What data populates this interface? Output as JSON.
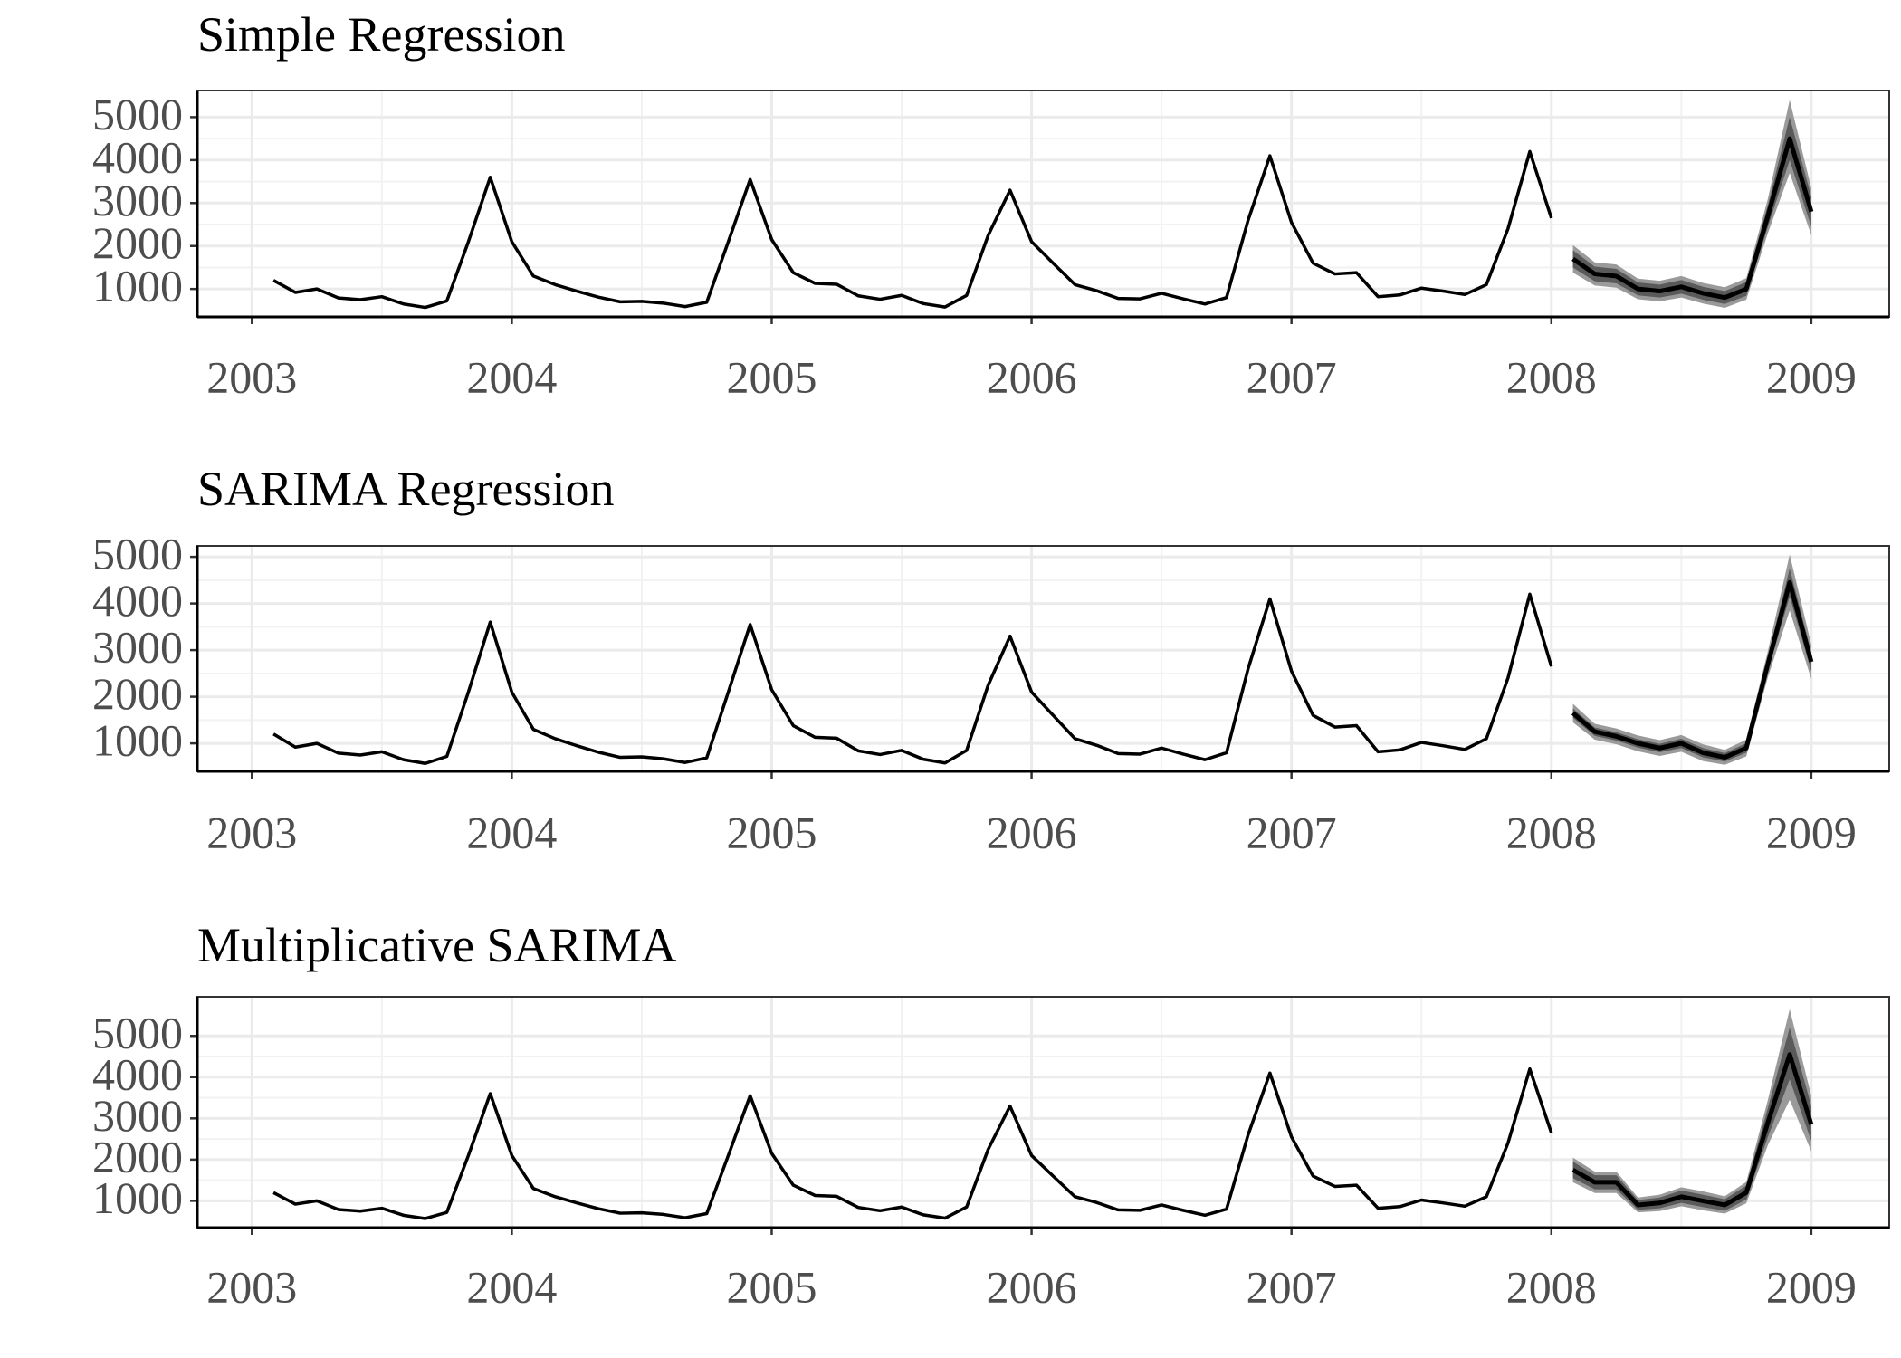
{
  "chart_data": [
    {
      "type": "line",
      "title": "Simple Regression",
      "color": "#000000",
      "grid": true,
      "xlim": [
        2002.79,
        2009.3
      ],
      "xticks": [
        2003,
        2004,
        2005,
        2006,
        2007,
        2008,
        2009
      ],
      "ylim": [
        350,
        5620
      ],
      "yticks": [
        1000,
        2000,
        3000,
        4000,
        5000
      ],
      "x": [
        2003.083,
        2003.167,
        2003.25,
        2003.333,
        2003.417,
        2003.5,
        2003.583,
        2003.667,
        2003.75,
        2003.833,
        2003.917,
        2004,
        2004.083,
        2004.167,
        2004.25,
        2004.333,
        2004.417,
        2004.5,
        2004.583,
        2004.667,
        2004.75,
        2004.833,
        2004.917,
        2005,
        2005.083,
        2005.167,
        2005.25,
        2005.333,
        2005.417,
        2005.5,
        2005.583,
        2005.667,
        2005.75,
        2005.833,
        2005.917,
        2006,
        2006.083,
        2006.167,
        2006.25,
        2006.333,
        2006.417,
        2006.5,
        2006.583,
        2006.667,
        2006.75,
        2006.833,
        2006.917,
        2007,
        2007.083,
        2007.167,
        2007.25,
        2007.333,
        2007.417,
        2007.5,
        2007.583,
        2007.667,
        2007.75,
        2007.833,
        2007.917,
        2008
      ],
      "values": [
        1200,
        920,
        1000,
        790,
        750,
        820,
        650,
        570,
        720,
        2100,
        3600,
        2100,
        1300,
        1100,
        950,
        810,
        700,
        710,
        670,
        590,
        690,
        2100,
        3550,
        2150,
        1380,
        1130,
        1110,
        840,
        760,
        850,
        660,
        580,
        850,
        2250,
        3300,
        2100,
        1600,
        1100,
        960,
        780,
        770,
        900,
        770,
        650,
        800,
        2600,
        4100,
        2550,
        1600,
        1350,
        1380,
        820,
        860,
        1020,
        950,
        870,
        1100,
        2400,
        4200,
        2650
      ],
      "forecast": {
        "color_80": "#5a5a5a",
        "color_95": "#9a9a9a",
        "x": [
          2008.083,
          2008.167,
          2008.25,
          2008.333,
          2008.417,
          2008.5,
          2008.583,
          2008.667,
          2008.75,
          2008.833,
          2008.917,
          2009
        ],
        "values": [
          1700,
          1350,
          1300,
          1000,
          950,
          1050,
          900,
          800,
          1000,
          2700,
          4500,
          2800
        ],
        "lower_80": [
          1500,
          1180,
          1130,
          850,
          800,
          890,
          750,
          650,
          840,
          2450,
          4000,
          2450
        ],
        "upper_80": [
          1900,
          1520,
          1470,
          1150,
          1100,
          1210,
          1050,
          950,
          1160,
          2950,
          5000,
          3150
        ],
        "lower_95": [
          1380,
          1080,
          1030,
          760,
          710,
          800,
          660,
          560,
          750,
          2300,
          3700,
          2250
        ],
        "upper_95": [
          2020,
          1620,
          1570,
          1240,
          1190,
          1300,
          1140,
          1040,
          1250,
          3100,
          5400,
          3350
        ]
      }
    },
    {
      "type": "line",
      "title": "SARIMA Regression",
      "color": "#000000",
      "grid": true,
      "xlim": [
        2002.79,
        2009.3
      ],
      "xticks": [
        2003,
        2004,
        2005,
        2006,
        2007,
        2008,
        2009
      ],
      "ylim": [
        400,
        5235
      ],
      "yticks": [
        1000,
        2000,
        3000,
        4000,
        5000
      ],
      "x": [
        2003.083,
        2003.167,
        2003.25,
        2003.333,
        2003.417,
        2003.5,
        2003.583,
        2003.667,
        2003.75,
        2003.833,
        2003.917,
        2004,
        2004.083,
        2004.167,
        2004.25,
        2004.333,
        2004.417,
        2004.5,
        2004.583,
        2004.667,
        2004.75,
        2004.833,
        2004.917,
        2005,
        2005.083,
        2005.167,
        2005.25,
        2005.333,
        2005.417,
        2005.5,
        2005.583,
        2005.667,
        2005.75,
        2005.833,
        2005.917,
        2006,
        2006.083,
        2006.167,
        2006.25,
        2006.333,
        2006.417,
        2006.5,
        2006.583,
        2006.667,
        2006.75,
        2006.833,
        2006.917,
        2007,
        2007.083,
        2007.167,
        2007.25,
        2007.333,
        2007.417,
        2007.5,
        2007.583,
        2007.667,
        2007.75,
        2007.833,
        2007.917,
        2008
      ],
      "values": [
        1200,
        920,
        1000,
        790,
        750,
        820,
        650,
        570,
        720,
        2100,
        3600,
        2100,
        1300,
        1100,
        950,
        810,
        700,
        710,
        670,
        590,
        690,
        2100,
        3550,
        2150,
        1380,
        1130,
        1110,
        840,
        760,
        850,
        660,
        580,
        850,
        2250,
        3300,
        2100,
        1600,
        1100,
        960,
        780,
        770,
        900,
        770,
        650,
        800,
        2600,
        4100,
        2550,
        1600,
        1350,
        1380,
        820,
        860,
        1020,
        950,
        870,
        1100,
        2400,
        4200,
        2650
      ],
      "forecast": {
        "color_80": "#5a5a5a",
        "color_95": "#9a9a9a",
        "x": [
          2008.083,
          2008.167,
          2008.25,
          2008.333,
          2008.417,
          2008.5,
          2008.583,
          2008.667,
          2008.75,
          2008.833,
          2008.917,
          2009
        ],
        "values": [
          1650,
          1250,
          1150,
          1000,
          900,
          1000,
          800,
          700,
          900,
          2700,
          4450,
          2750
        ],
        "lower_80": [
          1550,
          1160,
          1060,
          910,
          810,
          900,
          700,
          610,
          800,
          2550,
          4150,
          2550
        ],
        "upper_80": [
          1750,
          1340,
          1240,
          1090,
          990,
          1100,
          900,
          790,
          1000,
          2850,
          4750,
          2950
        ],
        "lower_95": [
          1450,
          1080,
          980,
          830,
          730,
          820,
          620,
          540,
          720,
          2420,
          3850,
          2380
        ],
        "upper_95": [
          1850,
          1420,
          1320,
          1170,
          1070,
          1180,
          980,
          860,
          1080,
          2980,
          5050,
          3120
        ]
      }
    },
    {
      "type": "line",
      "title": "Multiplicative SARIMA",
      "color": "#000000",
      "grid": true,
      "xlim": [
        2002.79,
        2009.3
      ],
      "xticks": [
        2003,
        2004,
        2005,
        2006,
        2007,
        2008,
        2009
      ],
      "ylim": [
        350,
        5950
      ],
      "yticks": [
        1000,
        2000,
        3000,
        4000,
        5000
      ],
      "x": [
        2003.083,
        2003.167,
        2003.25,
        2003.333,
        2003.417,
        2003.5,
        2003.583,
        2003.667,
        2003.75,
        2003.833,
        2003.917,
        2004,
        2004.083,
        2004.167,
        2004.25,
        2004.333,
        2004.417,
        2004.5,
        2004.583,
        2004.667,
        2004.75,
        2004.833,
        2004.917,
        2005,
        2005.083,
        2005.167,
        2005.25,
        2005.333,
        2005.417,
        2005.5,
        2005.583,
        2005.667,
        2005.75,
        2005.833,
        2005.917,
        2006,
        2006.083,
        2006.167,
        2006.25,
        2006.333,
        2006.417,
        2006.5,
        2006.583,
        2006.667,
        2006.75,
        2006.833,
        2006.917,
        2007,
        2007.083,
        2007.167,
        2007.25,
        2007.333,
        2007.417,
        2007.5,
        2007.583,
        2007.667,
        2007.75,
        2007.833,
        2007.917,
        2008
      ],
      "values": [
        1200,
        920,
        1000,
        790,
        750,
        820,
        650,
        570,
        720,
        2100,
        3600,
        2100,
        1300,
        1100,
        950,
        810,
        700,
        710,
        670,
        590,
        690,
        2100,
        3550,
        2150,
        1380,
        1130,
        1110,
        840,
        760,
        850,
        660,
        580,
        850,
        2250,
        3300,
        2100,
        1600,
        1100,
        960,
        780,
        770,
        900,
        770,
        650,
        800,
        2600,
        4100,
        2550,
        1600,
        1350,
        1380,
        820,
        860,
        1020,
        950,
        870,
        1100,
        2400,
        4200,
        2650
      ],
      "forecast": {
        "color_80": "#5a5a5a",
        "color_95": "#9a9a9a",
        "x": [
          2008.083,
          2008.167,
          2008.25,
          2008.333,
          2008.417,
          2008.5,
          2008.583,
          2008.667,
          2008.75,
          2008.833,
          2008.917,
          2009
        ],
        "values": [
          1750,
          1450,
          1450,
          900,
          950,
          1100,
          1000,
          900,
          1200,
          2900,
          4550,
          2850
        ],
        "lower_80": [
          1550,
          1280,
          1280,
          780,
          820,
          950,
          850,
          760,
          1030,
          2550,
          3950,
          2450
        ],
        "upper_80": [
          1950,
          1620,
          1620,
          1020,
          1080,
          1250,
          1150,
          1040,
          1370,
          3250,
          5200,
          3300
        ],
        "lower_95": [
          1450,
          1190,
          1190,
          720,
          750,
          870,
          770,
          690,
          940,
          2350,
          3450,
          2200
        ],
        "upper_95": [
          2050,
          1710,
          1710,
          1080,
          1150,
          1330,
          1230,
          1110,
          1460,
          3450,
          5650,
          3550
        ]
      }
    }
  ]
}
